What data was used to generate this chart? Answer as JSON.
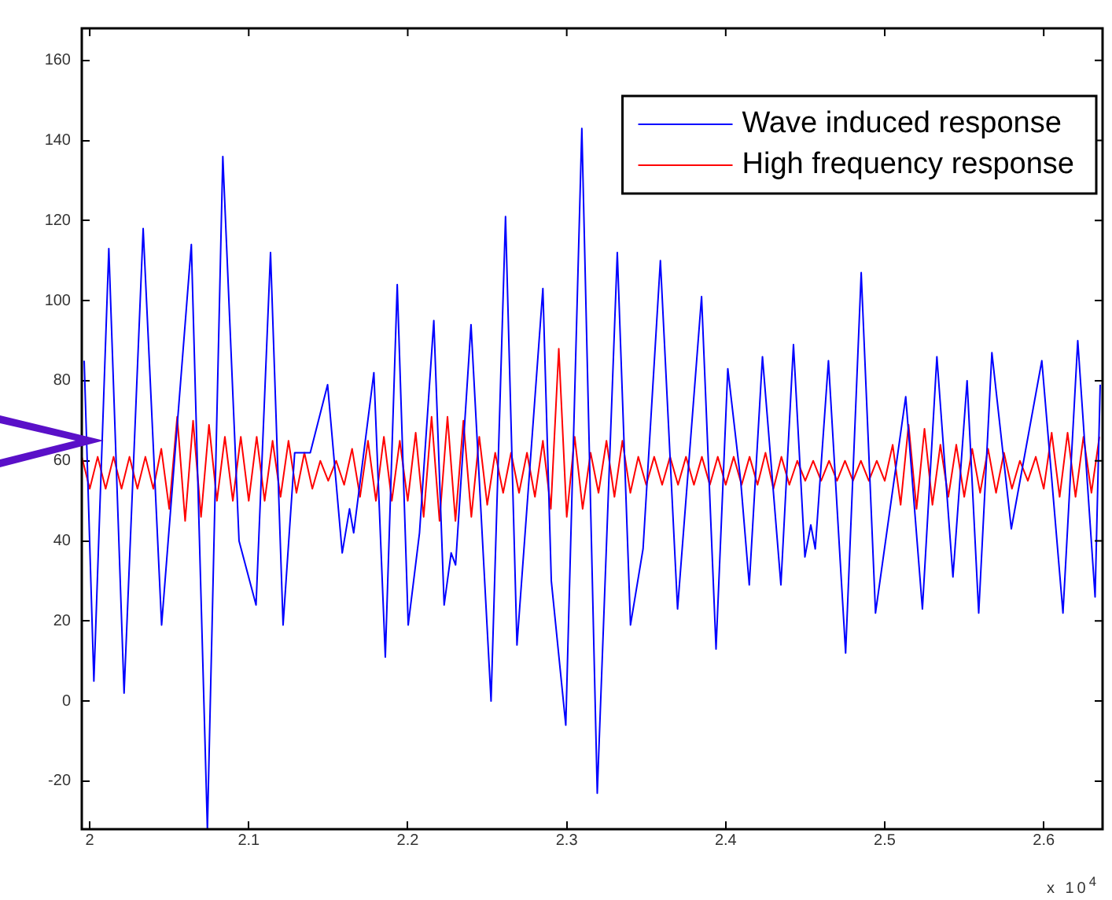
{
  "chart_data": {
    "type": "line",
    "xlim": [
      1.995,
      2.637
    ],
    "ylim": [
      -32,
      168
    ],
    "xticks": [
      2,
      2.1,
      2.2,
      2.3,
      2.4,
      2.5,
      2.6
    ],
    "yticks": [
      -20,
      0,
      20,
      40,
      60,
      80,
      100,
      120,
      140,
      160
    ],
    "grid": false,
    "legend": "top right",
    "marker": "none",
    "line_style": "solid",
    "annotations": [
      "x 10$^{4}$"
    ],
    "series": [
      {
        "name": "Wave induced response",
        "color": "#0000ff",
        "x": [
          1.9965,
          2.0026,
          2.012,
          2.0216,
          2.0336,
          2.0452,
          2.0639,
          2.074,
          2.0837,
          2.0939,
          2.1046,
          2.1137,
          2.1216,
          2.1289,
          2.1387,
          2.1496,
          2.1588,
          2.1634,
          2.166,
          2.1787,
          2.1859,
          2.1934,
          2.2003,
          2.2074,
          2.2164,
          2.2229,
          2.2273,
          2.2301,
          2.2398,
          2.2524,
          2.2615,
          2.2687,
          2.285,
          2.2903,
          2.2994,
          2.3095,
          2.3192,
          2.3318,
          2.3401,
          2.348,
          2.3589,
          2.3697,
          2.3848,
          2.3939,
          2.4013,
          2.4094,
          2.4148,
          2.4231,
          2.4347,
          2.4426,
          2.4498,
          2.4535,
          2.4563,
          2.4646,
          2.4754,
          2.4852,
          2.4942,
          2.5132,
          2.5237,
          2.5328,
          2.5429,
          2.5518,
          2.5591,
          2.5674,
          2.5796,
          2.5988,
          2.6121,
          2.6214,
          2.6323,
          2.6355
        ],
        "values": [
          85,
          5,
          113,
          2,
          118,
          19,
          114,
          -32,
          136,
          40,
          24,
          112,
          19,
          62,
          62,
          79,
          37,
          48,
          42,
          82,
          11,
          104,
          19,
          42,
          95,
          24,
          37,
          34,
          94,
          0,
          121,
          14,
          103,
          30,
          -6,
          143,
          -23,
          112,
          19,
          38,
          110,
          23,
          101,
          13,
          83,
          55,
          29,
          86,
          29,
          89,
          36,
          44,
          38,
          85,
          12,
          107,
          22,
          76,
          23,
          86,
          31,
          80,
          22,
          87,
          43,
          85,
          22,
          90,
          26,
          79
        ]
      },
      {
        "name": "High frequency response",
        "color": "#ff0000",
        "x": [
          1.995,
          2,
          2.005,
          2.01,
          2.015,
          2.02,
          2.025,
          2.03,
          2.035,
          2.04,
          2.045,
          2.05,
          2.055,
          2.06,
          2.065,
          2.07,
          2.075,
          2.08,
          2.085,
          2.09,
          2.095,
          2.1,
          2.105,
          2.11,
          2.115,
          2.12,
          2.125,
          2.13,
          2.135,
          2.14,
          2.145,
          2.15,
          2.155,
          2.16,
          2.165,
          2.17,
          2.175,
          2.18,
          2.185,
          2.19,
          2.195,
          2.2,
          2.205,
          2.21,
          2.215,
          2.22,
          2.225,
          2.23,
          2.235,
          2.24,
          2.245,
          2.25,
          2.255,
          2.26,
          2.265,
          2.27,
          2.275,
          2.28,
          2.285,
          2.29,
          2.295,
          2.3,
          2.305,
          2.31,
          2.315,
          2.32,
          2.325,
          2.33,
          2.335,
          2.34,
          2.345,
          2.35,
          2.355,
          2.36,
          2.365,
          2.37,
          2.375,
          2.38,
          2.385,
          2.39,
          2.395,
          2.4,
          2.405,
          2.41,
          2.415,
          2.42,
          2.425,
          2.43,
          2.435,
          2.44,
          2.445,
          2.45,
          2.455,
          2.46,
          2.465,
          2.47,
          2.475,
          2.48,
          2.485,
          2.49,
          2.495,
          2.5,
          2.505,
          2.51,
          2.515,
          2.52,
          2.525,
          2.53,
          2.535,
          2.54,
          2.545,
          2.55,
          2.555,
          2.56,
          2.565,
          2.57,
          2.575,
          2.58,
          2.585,
          2.59,
          2.595,
          2.6,
          2.605,
          2.61,
          2.615,
          2.62,
          2.625,
          2.63,
          2.635
        ],
        "values": [
          61,
          53,
          61,
          53,
          61,
          53,
          61,
          53,
          61,
          53,
          63,
          48,
          71,
          45,
          70,
          46,
          69,
          50,
          66,
          50,
          66,
          50,
          66,
          50,
          65,
          51,
          65,
          52,
          62,
          53,
          60,
          55,
          60,
          54,
          63,
          51,
          65,
          50,
          66,
          50,
          65,
          50,
          67,
          46,
          71,
          45,
          71,
          45,
          70,
          46,
          66,
          49,
          62,
          52,
          62,
          52,
          62,
          51,
          65,
          48,
          88,
          46,
          66,
          48,
          62,
          52,
          65,
          51,
          65,
          52,
          61,
          54,
          61,
          54,
          61,
          54,
          61,
          54,
          61,
          54,
          61,
          54,
          61,
          54,
          61,
          54,
          62,
          53,
          61,
          54,
          60,
          55,
          60,
          55,
          60,
          55,
          60,
          55,
          60,
          55,
          60,
          55,
          64,
          49,
          69,
          48,
          68,
          49,
          64,
          51,
          64,
          51,
          63,
          52,
          63,
          52,
          62,
          53,
          60,
          55,
          61,
          53,
          67,
          51,
          67,
          51,
          66,
          52,
          66
        ]
      }
    ]
  }
}
